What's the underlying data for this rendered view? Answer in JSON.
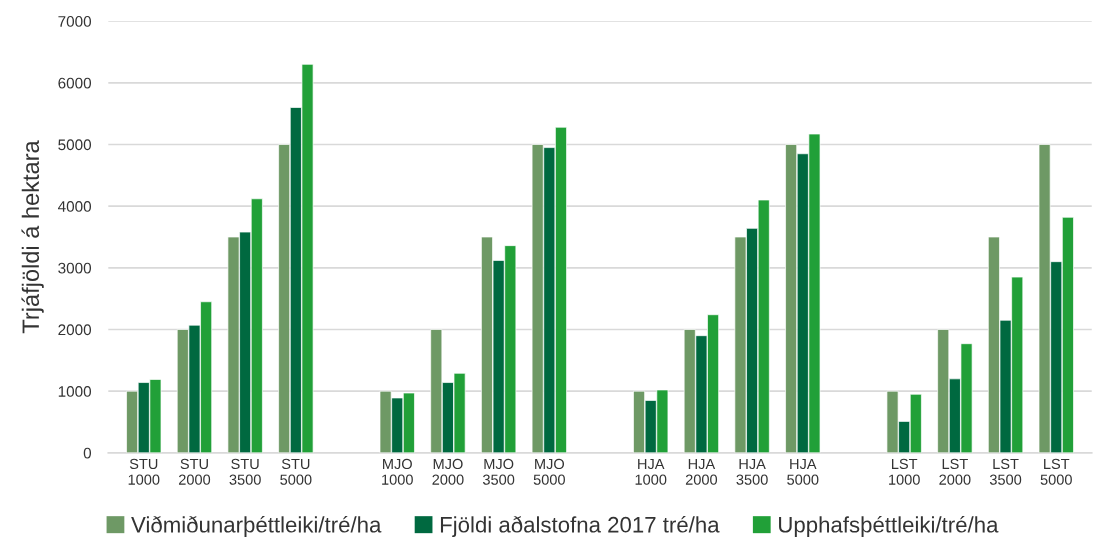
{
  "chart_data": {
    "type": "bar",
    "ylabel": "Trjáfjöldi á hektara",
    "categories": [
      "STU\n1000",
      "STU\n2000",
      "STU\n3500",
      "STU\n5000",
      null,
      "MJO\n1000",
      "MJO\n2000",
      "MJO\n3500",
      "MJO\n5000",
      null,
      "HJA\n1000",
      "HJA\n2000",
      "HJA\n3500",
      "HJA\n5000",
      null,
      "LST\n1000",
      "LST\n2000",
      "LST\n3500",
      "LST\n5000"
    ],
    "series": [
      {
        "name": "Viðmiðunarþéttleiki/tré/ha",
        "color": "#6e9965",
        "values": [
          1000,
          2000,
          3500,
          5000,
          null,
          1000,
          2000,
          3500,
          5000,
          null,
          1000,
          2000,
          3500,
          5000,
          null,
          1000,
          2000,
          3500,
          5000
        ]
      },
      {
        "name": "Fjöldi aðalstofna 2017 tré/ha",
        "color": "#006940",
        "values": [
          1140,
          2070,
          3580,
          5600,
          null,
          890,
          1140,
          3120,
          4950,
          null,
          850,
          1900,
          3640,
          4850,
          null,
          510,
          1200,
          2150,
          3100
        ]
      },
      {
        "name": "Upphafsþéttleiki/tré/ha",
        "color": "#21a038",
        "values": [
          1190,
          2450,
          4120,
          6300,
          null,
          970,
          1290,
          3360,
          5280,
          null,
          1020,
          2240,
          4100,
          5170,
          null,
          950,
          1770,
          2850,
          3820
        ]
      }
    ],
    "ylim": [
      0,
      7000
    ],
    "yticks": [
      0,
      1000,
      2000,
      3000,
      4000,
      5000,
      6000,
      7000
    ],
    "grid": "y",
    "legend": "bottom"
  }
}
